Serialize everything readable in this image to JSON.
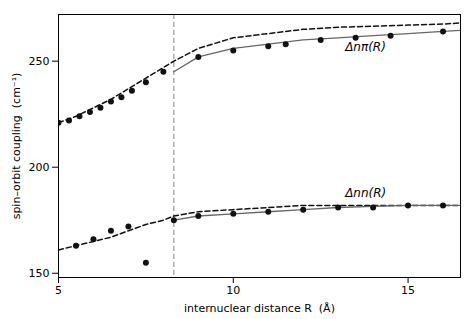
{
  "chart_data": {
    "type": "line",
    "xlabel": "internuclear distance R  (Å)",
    "ylabel": "spin–orbit coupling  (cm⁻¹)",
    "xlim": [
      5,
      16.5
    ],
    "ylim": [
      148,
      272
    ],
    "xticks": [
      5,
      10,
      15
    ],
    "yticks": [
      150,
      200,
      250
    ],
    "grid": false,
    "series": [
      {
        "type": "line",
        "line_style": "dashed",
        "color": "#111111",
        "x": [
          5.0,
          5.5,
          6.0,
          6.5,
          7.0,
          7.5,
          8.0,
          8.3,
          9.0,
          10.0,
          11.0,
          12.0,
          13.0,
          14.0,
          15.0,
          16.0,
          16.5
        ],
        "values": [
          221,
          224,
          228,
          232,
          237,
          242,
          247,
          250,
          256,
          261,
          263,
          265,
          266,
          266.5,
          267,
          267.5,
          268
        ]
      },
      {
        "type": "line",
        "line_style": "dashed",
        "color": "#111111",
        "x": [
          5.0,
          5.5,
          6.0,
          6.5,
          7.0,
          7.5,
          8.0,
          8.3,
          9.0,
          10.0,
          11.0,
          12.0,
          13.0,
          14.0,
          15.0,
          16.0,
          16.5
        ],
        "values": [
          161,
          163,
          165,
          167,
          170,
          173,
          175,
          177,
          179,
          180,
          181,
          182,
          182,
          182,
          182,
          182,
          182
        ]
      },
      {
        "type": "line",
        "line_style": "solid",
        "color": "#666666",
        "x": [
          8.3,
          9.0,
          10.0,
          11.0,
          12.0,
          13.0,
          14.0,
          15.0,
          16.0,
          16.5
        ],
        "values": [
          245,
          252,
          256,
          258,
          260,
          261,
          262,
          263,
          264,
          264.5
        ]
      },
      {
        "type": "line",
        "line_style": "solid",
        "color": "#666666",
        "x": [
          8.3,
          9.0,
          10.0,
          11.0,
          12.0,
          13.0,
          14.0,
          15.0,
          16.0,
          16.5
        ],
        "values": [
          175,
          177,
          178,
          179,
          180,
          181,
          181.5,
          182,
          182,
          182
        ]
      },
      {
        "type": "scatter",
        "marker": "circle",
        "color": "#111111",
        "x": [
          5.0,
          5.3,
          5.6,
          5.9,
          6.2,
          6.5,
          6.8,
          7.1,
          7.5,
          8.0,
          9.0,
          10.0,
          11.0,
          11.5,
          12.5,
          13.5,
          14.5,
          16.0
        ],
        "values": [
          221,
          222,
          224,
          226,
          228,
          231,
          233,
          236,
          240,
          245,
          252,
          255,
          257,
          258,
          260,
          261,
          262,
          264
        ]
      },
      {
        "type": "scatter",
        "marker": "circle",
        "color": "#111111",
        "x": [
          5.5,
          6.0,
          6.5,
          7.0,
          7.5,
          8.3,
          9.0,
          10.0,
          11.0,
          12.0,
          13.0,
          14.0,
          15.0,
          16.0
        ],
        "values": [
          163,
          166,
          170,
          172,
          155,
          175,
          177,
          178,
          179,
          180,
          181,
          181,
          182,
          182
        ]
      }
    ],
    "vlines": [
      {
        "x": 8.3,
        "color": "gray",
        "line_style": "dashed"
      }
    ],
    "annotations": [
      {
        "text": "Δnπ(R)",
        "x": 13.2,
        "y": 255
      },
      {
        "text": "Δnn(R)",
        "x": 13.2,
        "y": 186
      }
    ]
  }
}
